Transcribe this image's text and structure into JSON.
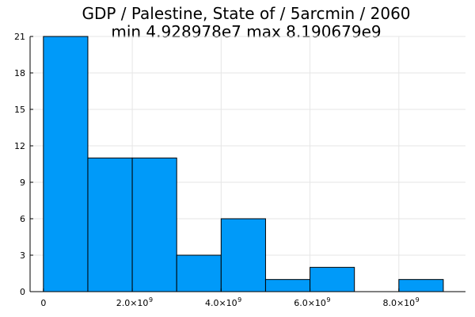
{
  "chart_data": {
    "type": "bar",
    "title_line1": "GDP / Palestine, State of / 5arcmin / 2060",
    "title_line2": "min 4.928978e7  max 8.190679e9",
    "bin_edges": [
      0,
      1000000000,
      2000000000,
      3000000000,
      4000000000,
      5000000000,
      6000000000,
      7000000000,
      8000000000,
      9000000000
    ],
    "counts": [
      21,
      11,
      11,
      3,
      6,
      1,
      2,
      0,
      1
    ],
    "xlim": [
      -300000000,
      9500000000
    ],
    "ylim": [
      0,
      21
    ],
    "x_ticks": [
      {
        "value": 0,
        "mant": "0",
        "exp": ""
      },
      {
        "value": 2000000000,
        "mant": "2.0×10",
        "exp": "9"
      },
      {
        "value": 4000000000,
        "mant": "4.0×10",
        "exp": "9"
      },
      {
        "value": 6000000000,
        "mant": "6.0×10",
        "exp": "9"
      },
      {
        "value": 8000000000,
        "mant": "8.0×10",
        "exp": "9"
      }
    ],
    "y_ticks": [
      0,
      3,
      6,
      9,
      12,
      15,
      18,
      21
    ],
    "grid": true,
    "legend": false,
    "bar_color": "#009af9",
    "edge_color": "#000000"
  }
}
